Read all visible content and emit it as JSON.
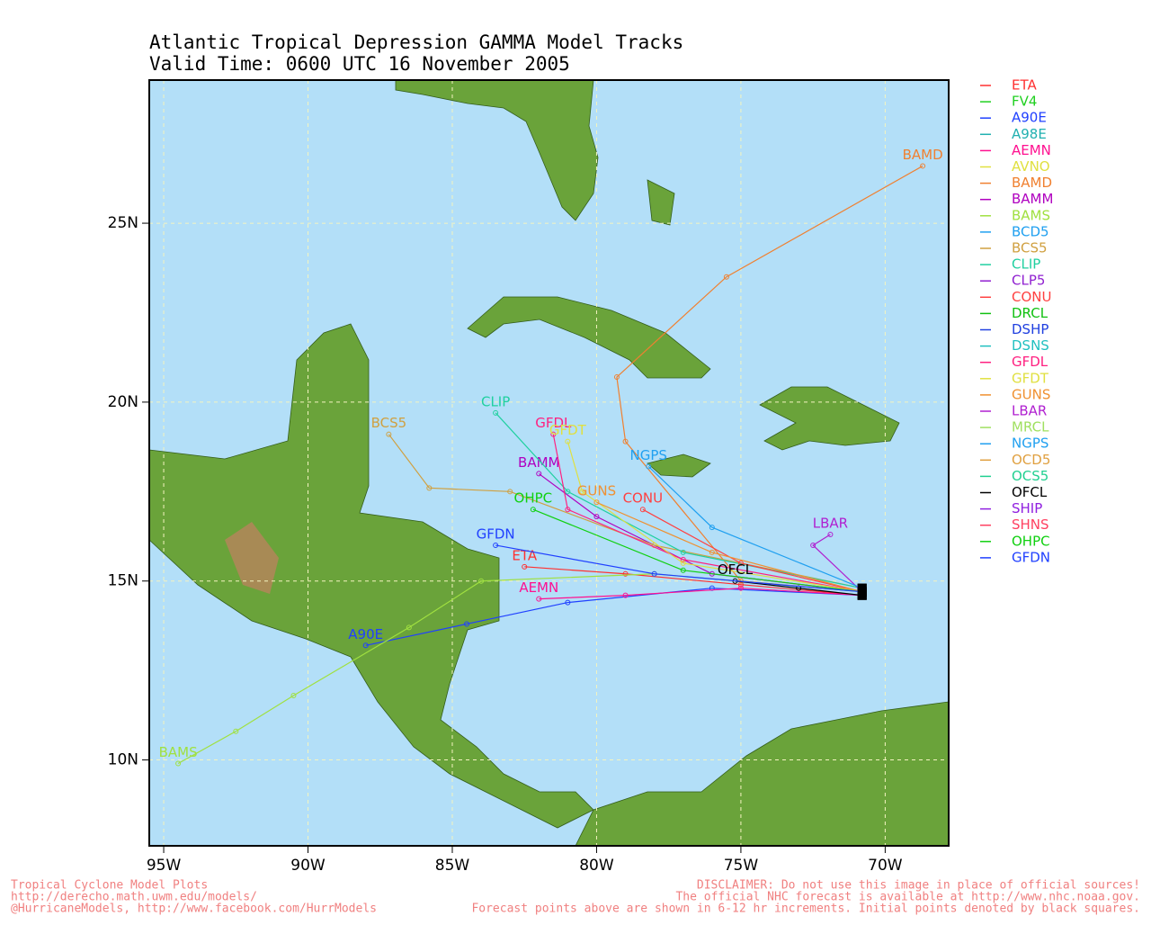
{
  "chart_data": {
    "type": "track-map",
    "title": "Atlantic Tropical Depression GAMMA Model Tracks",
    "subtitle": "Valid Time: 0600 UTC 16 November 2005",
    "xlim": [
      -95.5,
      -67.8
    ],
    "ylim": [
      7.6,
      29.0
    ],
    "xticks": [
      {
        "value": -95,
        "label": "95W"
      },
      {
        "value": -90,
        "label": "90W"
      },
      {
        "value": -85,
        "label": "85W"
      },
      {
        "value": -80,
        "label": "80W"
      },
      {
        "value": -75,
        "label": "75W"
      },
      {
        "value": -70,
        "label": "70W"
      }
    ],
    "yticks": [
      {
        "value": 10,
        "label": "10N"
      },
      {
        "value": 15,
        "label": "15N"
      },
      {
        "value": 20,
        "label": "20N"
      },
      {
        "value": 25,
        "label": "25N"
      }
    ],
    "grid": true,
    "series": [
      {
        "name": "ETA",
        "color": "#ff3030",
        "lon": [
          -70.8,
          -75,
          -79,
          -82.5
        ],
        "lat": [
          14.6,
          14.9,
          15.2,
          15.4
        ]
      },
      {
        "name": "FV4",
        "color": "#20d020"
      },
      {
        "name": "A90E",
        "color": "#2040ff",
        "lon": [
          -70.8,
          -76,
          -81,
          -84.5,
          -88
        ],
        "lat": [
          14.6,
          14.8,
          14.4,
          13.8,
          13.2
        ]
      },
      {
        "name": "A98E",
        "color": "#20b0b0"
      },
      {
        "name": "AEMN",
        "color": "#ff1090",
        "lon": [
          -70.8,
          -75,
          -79,
          -82
        ],
        "lat": [
          14.6,
          14.8,
          14.6,
          14.5
        ]
      },
      {
        "name": "AVNO",
        "color": "#e0e040"
      },
      {
        "name": "BAMD",
        "color": "#f08030",
        "lon": [
          -70.8,
          -75,
          -79,
          -79.3,
          -75.5,
          -68.7
        ],
        "lat": [
          14.7,
          15,
          18.9,
          20.7,
          23.5,
          26.6
        ]
      },
      {
        "name": "BAMM",
        "color": "#b000c0",
        "lon": [
          -70.8,
          -76,
          -80,
          -82
        ],
        "lat": [
          14.7,
          15.2,
          16.8,
          18
        ]
      },
      {
        "name": "BAMS",
        "color": "#a0e040",
        "lon": [
          -70.8,
          -78,
          -84,
          -86.5,
          -90.5,
          -92.5,
          -94.5
        ],
        "lat": [
          14.7,
          15.2,
          15,
          13.7,
          11.8,
          10.8,
          9.9
        ]
      },
      {
        "name": "BCD5",
        "color": "#20a0f0"
      },
      {
        "name": "BCS5",
        "color": "#d0a040",
        "lon": [
          -70.8,
          -78,
          -83,
          -85.8,
          -87.2
        ],
        "lat": [
          14.8,
          16,
          17.5,
          17.6,
          19.1
        ]
      },
      {
        "name": "CLIP",
        "color": "#20d0a0",
        "lon": [
          -70.8,
          -77,
          -81,
          -83.5
        ],
        "lat": [
          14.8,
          15.8,
          17.5,
          19.7
        ]
      },
      {
        "name": "CLP5",
        "color": "#9020d0"
      },
      {
        "name": "CONU",
        "color": "#ff4040",
        "lon": [
          -70.8,
          -75,
          -78.4
        ],
        "lat": [
          14.7,
          15.5,
          17
        ]
      },
      {
        "name": "DRCL",
        "color": "#10c010"
      },
      {
        "name": "DSHP",
        "color": "#2040e0"
      },
      {
        "name": "DSNS",
        "color": "#20c0c0"
      },
      {
        "name": "GFDL",
        "color": "#ff2080",
        "lon": [
          -70.8,
          -77,
          -81,
          -81.5
        ],
        "lat": [
          14.7,
          15.6,
          17,
          19.1
        ]
      },
      {
        "name": "GFDT",
        "color": "#e0e040",
        "lon": [
          -70.8,
          -77,
          -80.5,
          -81
        ],
        "lat": [
          14.7,
          15.5,
          17.5,
          18.9
        ]
      },
      {
        "name": "GUNS",
        "color": "#f09030",
        "lon": [
          -70.8,
          -76,
          -80
        ],
        "lat": [
          14.7,
          15.8,
          17.2
        ]
      },
      {
        "name": "LBAR",
        "color": "#b020d0",
        "lon": [
          -70.8,
          -72.5,
          -71.9
        ],
        "lat": [
          14.7,
          16,
          16.3
        ]
      },
      {
        "name": "MRCL",
        "color": "#a0e060"
      },
      {
        "name": "NGPS",
        "color": "#20a0f0",
        "lon": [
          -70.8,
          -76,
          -78.2
        ],
        "lat": [
          14.8,
          16.5,
          18.2
        ]
      },
      {
        "name": "OCD5",
        "color": "#e0a040"
      },
      {
        "name": "OCS5",
        "color": "#20d090"
      },
      {
        "name": "OFCL",
        "color": "#000000",
        "lon": [
          -70.8,
          -73,
          -75.2
        ],
        "lat": [
          14.6,
          14.8,
          15
        ]
      },
      {
        "name": "SHIP",
        "color": "#9020e0"
      },
      {
        "name": "SHNS",
        "color": "#ff4060"
      },
      {
        "name": "OHPC",
        "color": "#10d010",
        "lon": [
          -70.8,
          -77,
          -82.2
        ],
        "lat": [
          14.7,
          15.3,
          17
        ]
      },
      {
        "name": "GFDN",
        "color": "#2040ff",
        "lon": [
          -70.8,
          -78,
          -83.5
        ],
        "lat": [
          14.7,
          15.2,
          16
        ]
      }
    ],
    "footer_left": [
      "Tropical Cyclone Model Plots",
      "http://derecho.math.uwm.edu/models/",
      "@HurricaneModels, http://www.facebook.com/HurrModels"
    ],
    "footer_right": [
      "DISCLAIMER: Do not use this image in place of official sources!",
      "The official NHC forecast is available at http://www.nhc.noaa.gov.",
      "Forecast points above are shown in 6-12 hr increments. Initial points denoted by black squares."
    ]
  }
}
